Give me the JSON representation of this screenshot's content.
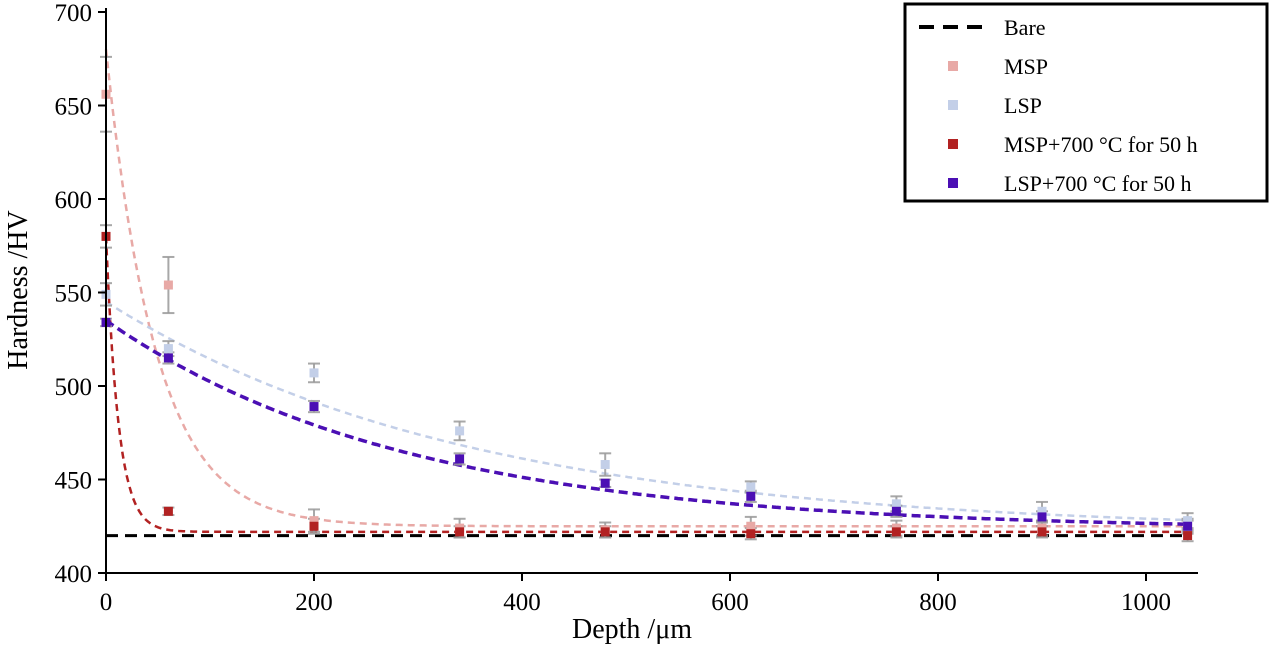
{
  "chart_data": {
    "type": "scatter",
    "xlabel": "Depth /μm",
    "ylabel": "Hardness /HV",
    "xlim": [
      0,
      1050
    ],
    "ylim": [
      400,
      700
    ],
    "xticks": [
      "0",
      "200",
      "400",
      "600",
      "800",
      "1000"
    ],
    "yticks": [
      "400",
      "450",
      "500",
      "550",
      "600",
      "650",
      "700"
    ],
    "grid": false,
    "legend_position": "top-right",
    "series": [
      {
        "name": "Bare",
        "color": "#000000",
        "style": "dashed-line",
        "points": [],
        "fit": {
          "a": 420,
          "b": 0,
          "tau": 100
        }
      },
      {
        "name": "MSP",
        "color": "#e8a9a6",
        "style": "markers",
        "points": [
          {
            "x": 0,
            "y": 656,
            "err": 20
          },
          {
            "x": 60,
            "y": 554,
            "err": 15
          },
          {
            "x": 200,
            "y": 428,
            "err": 6
          },
          {
            "x": 340,
            "y": 424,
            "err": 5
          },
          {
            "x": 480,
            "y": 423,
            "err": 4
          },
          {
            "x": 620,
            "y": 425,
            "err": 5
          },
          {
            "x": 760,
            "y": 424,
            "err": 4
          },
          {
            "x": 900,
            "y": 424,
            "err": 4
          },
          {
            "x": 1040,
            "y": 425,
            "err": 4
          }
        ],
        "fit": {
          "a": 425,
          "b": 255,
          "tau": 48
        }
      },
      {
        "name": "LSP",
        "color": "#c3cfe8",
        "style": "markers",
        "points": [
          {
            "x": 0,
            "y": 549,
            "err": 6
          },
          {
            "x": 60,
            "y": 520,
            "err": 4
          },
          {
            "x": 200,
            "y": 507,
            "err": 5
          },
          {
            "x": 340,
            "y": 476,
            "err": 5
          },
          {
            "x": 480,
            "y": 458,
            "err": 6
          },
          {
            "x": 620,
            "y": 446,
            "err": 3
          },
          {
            "x": 760,
            "y": 437,
            "err": 4
          },
          {
            "x": 900,
            "y": 433,
            "err": 5
          },
          {
            "x": 1040,
            "y": 428,
            "err": 4
          }
        ],
        "fit": {
          "a": 422,
          "b": 123,
          "tau": 350
        }
      },
      {
        "name": "MSP+700 °C for 50 h",
        "color": "#b22222",
        "style": "markers",
        "points": [
          {
            "x": 0,
            "y": 580,
            "err": 6
          },
          {
            "x": 60,
            "y": 433,
            "err": 2
          },
          {
            "x": 200,
            "y": 425,
            "err": 4
          },
          {
            "x": 340,
            "y": 422,
            "err": 3
          },
          {
            "x": 480,
            "y": 422,
            "err": 3
          },
          {
            "x": 620,
            "y": 421,
            "err": 3
          },
          {
            "x": 760,
            "y": 422,
            "err": 3
          },
          {
            "x": 900,
            "y": 422,
            "err": 3
          },
          {
            "x": 1040,
            "y": 420,
            "err": 3
          }
        ],
        "fit": {
          "a": 422,
          "b": 158,
          "tau": 12
        }
      },
      {
        "name": "LSP+700 °C for 50 h",
        "color": "#4b0fb4",
        "style": "markers",
        "points": [
          {
            "x": 0,
            "y": 534,
            "err": 2
          },
          {
            "x": 60,
            "y": 515,
            "err": 3
          },
          {
            "x": 200,
            "y": 489,
            "err": 3
          },
          {
            "x": 340,
            "y": 461,
            "err": 3
          },
          {
            "x": 480,
            "y": 448,
            "err": 2
          },
          {
            "x": 620,
            "y": 441,
            "err": 3
          },
          {
            "x": 760,
            "y": 433,
            "err": 3
          },
          {
            "x": 900,
            "y": 430,
            "err": 3
          },
          {
            "x": 1040,
            "y": 425,
            "err": 3
          }
        ],
        "fit": {
          "a": 423,
          "b": 112,
          "tau": 290
        }
      }
    ]
  }
}
